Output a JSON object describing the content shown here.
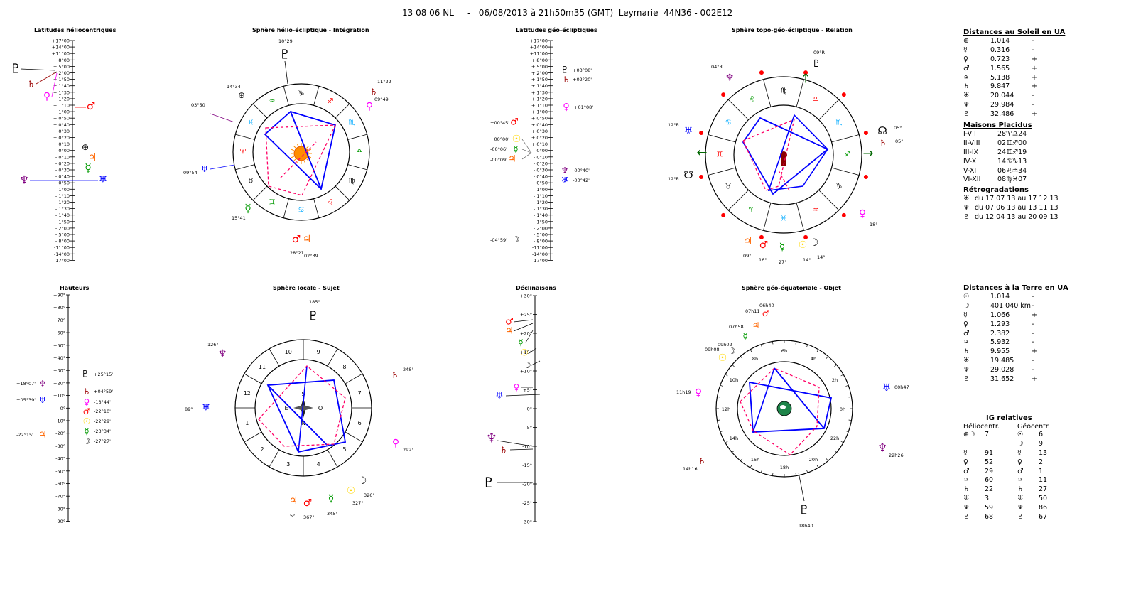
{
  "header": "13 08 06 NL     -   06/08/2013 à 21h50m35 (GMT)  Leymarie  44N36 - 002E12",
  "colors": {
    "sun": "#ffd700",
    "moon": "#000000",
    "mercury": "#009900",
    "venus": "#ff00ff",
    "mars": "#ff0000",
    "jupiter": "#ff6600",
    "saturn": "#990000",
    "uranus": "#0000ff",
    "neptune": "#800080",
    "pluto": "#000000",
    "aspect_blue": "#0000ff",
    "aspect_red": "#ff0066"
  },
  "panels": {
    "helio_lat": {
      "title": "Latitudes héliocentriques",
      "ticks": [
        "+17°00",
        "+14°00",
        "+11°00",
        "+ 8°00",
        "+ 5°00",
        "+ 2°00",
        "+ 1°50",
        "+ 1°40",
        "+ 1°30",
        "+ 1°20",
        "+ 1°10",
        "+ 1°00",
        "+ 0°50",
        "+ 0°40",
        "+ 0°30",
        "+ 0°20",
        "+ 0°10",
        "0°00",
        "- 0°10",
        "- 0°20",
        "- 0°30",
        "- 0°40",
        "- 0°50",
        "- 1°00",
        "- 1°10",
        "- 1°20",
        "- 1°30",
        "- 1°40",
        "- 1°50",
        "- 2°00",
        "- 5°00",
        "- 8°00",
        "-11°00",
        "-14°00",
        "-17°00"
      ]
    },
    "helio_sphere": {
      "title": "Sphère hélio-écliptique - Intégration",
      "labels": [
        "10°29",
        "11°22",
        "14°34",
        "09°49",
        "03°50",
        "09°54",
        "15°41",
        "28°21",
        "02°39"
      ]
    },
    "geo_lat": {
      "title": "Latitudes géo-écliptiques",
      "ticks": [
        "+17°00",
        "+14°00",
        "+11°00",
        "+ 8°00",
        "+ 5°00",
        "+ 2°00",
        "+ 1°50",
        "+ 1°40",
        "+ 1°30",
        "+ 1°20",
        "+ 1°10",
        "+ 1°00",
        "+ 0°50",
        "+ 0°40",
        "+ 0°30",
        "+ 0°20",
        "+ 0°10",
        "0°00",
        "- 0°10",
        "- 0°20",
        "- 0°30",
        "- 0°40",
        "- 0°50",
        "- 1°00",
        "- 1°10",
        "- 1°20",
        "- 1°30",
        "- 1°40",
        "- 1°50",
        "- 2°00",
        "- 5°00",
        "- 8°00",
        "-11°00",
        "-14°00",
        "-17°00"
      ],
      "labels": [
        "+03°08'",
        "+02°20'",
        "+01°08'",
        "+00°45'",
        "+00°00'",
        "-00°06'",
        "-00°09'",
        "-00°40'",
        "-00°42'",
        "-04°59'"
      ]
    },
    "topo_sphere": {
      "title": "Sphère topo-géo-écliptique - Relation",
      "labels": [
        "09°R",
        "04°R",
        "12°R",
        "05°",
        "12°R",
        "18°",
        "09°",
        "16°",
        "27°",
        "14°",
        "14°"
      ]
    },
    "heights": {
      "title": "Hauteurs",
      "ticks": [
        "+90°",
        "+80°",
        "+70°",
        "+60°",
        "+50°",
        "+40°",
        "+30°",
        "+20°",
        "+10°",
        "0°",
        "-10°",
        "-20°",
        "-30°",
        "-40°",
        "-50°",
        "-60°",
        "-70°",
        "-80°",
        "-90°"
      ],
      "labels": [
        "+25°15'",
        "+18°07'",
        "+04°59'",
        "+05°39'",
        "-13°44'",
        "-22°10'",
        "-22°29'",
        "-22°15'",
        "-23°34'",
        "-27°27'"
      ]
    },
    "local_sphere": {
      "title": "Sphère locale - Sujet",
      "houses": [
        "9",
        "8",
        "7",
        "6",
        "5",
        "4",
        "3",
        "2",
        "1",
        "12",
        "11",
        "10"
      ],
      "compass": [
        "S",
        "N",
        "E",
        "O"
      ],
      "labels": [
        "185°",
        "126°",
        "248°",
        "89°",
        "292°",
        "326°",
        "327°",
        "5°",
        "367°",
        "345°"
      ]
    },
    "declinations": {
      "title": "Déclinaisons",
      "ticks": [
        "+30°",
        "+25°",
        "+20°",
        "+15°",
        "+10°",
        "+5°",
        "0°",
        "-5°",
        "-10°",
        "-15°",
        "-20°",
        "-25°",
        "-30°"
      ]
    },
    "geo_eq": {
      "title": "Sphère géo-équatoriale - Objet",
      "hours": [
        "6h",
        "4h",
        "2h",
        "0h",
        "22h",
        "20h",
        "18h",
        "16h",
        "14h",
        "12h",
        "10h",
        "8h"
      ],
      "labels": [
        "06h40",
        "07h11",
        "07h58",
        "09h02",
        "09h08",
        "11h19",
        "00h47",
        "14h16",
        "22h26",
        "18h40"
      ]
    }
  },
  "sun_distances": {
    "title": "Distances au Soleil en UA",
    "rows": [
      {
        "sym": "⊕",
        "val": "1.014",
        "sign": "-"
      },
      {
        "sym": "☿",
        "val": "0.316",
        "sign": "-"
      },
      {
        "sym": "♀",
        "val": "0.723",
        "sign": "+"
      },
      {
        "sym": "♂",
        "val": "1.565",
        "sign": "+"
      },
      {
        "sym": "♃",
        "val": "5.138",
        "sign": "+"
      },
      {
        "sym": "♄",
        "val": "9.847",
        "sign": "+"
      },
      {
        "sym": "♅",
        "val": "20.044",
        "sign": "-"
      },
      {
        "sym": "♆",
        "val": "29.984",
        "sign": "-"
      },
      {
        "sym": "♇",
        "val": "32.486",
        "sign": "+"
      }
    ]
  },
  "houses_placidus": {
    "title": "Maisons Placidus",
    "rows": [
      {
        "k": "I-VII",
        "v": "28♈♎24"
      },
      {
        "k": "II-VIII",
        "v": "02♊♐00"
      },
      {
        "k": "III-IX",
        "v": "24♊♐19"
      },
      {
        "k": "IV-X",
        "v": "14♋♑13"
      },
      {
        "k": "V-XI",
        "v": "06♌♒34"
      },
      {
        "k": "VI-XII",
        "v": "08♍♓07"
      }
    ]
  },
  "retrogradations": {
    "title": "Rétrogradations",
    "rows": [
      {
        "sym": "♅",
        "text": "du 17 07 13 au 17 12 13"
      },
      {
        "sym": "♆",
        "text": "du 07 06 13 au 13 11 13"
      },
      {
        "sym": "♇",
        "text": "du 12 04 13 au 20 09 13"
      }
    ]
  },
  "earth_distances": {
    "title": "Distances à la Terre en UA",
    "rows": [
      {
        "sym": "☉",
        "val": "1.014",
        "sign": "-"
      },
      {
        "sym": "☽",
        "val": "401 040 km",
        "sign": "-"
      },
      {
        "sym": "☿",
        "val": "1.066",
        "sign": "+"
      },
      {
        "sym": "♀",
        "val": "1.293",
        "sign": "-"
      },
      {
        "sym": "♂",
        "val": "2.382",
        "sign": "-"
      },
      {
        "sym": "♃",
        "val": "5.932",
        "sign": "-"
      },
      {
        "sym": "♄",
        "val": "9.955",
        "sign": "+"
      },
      {
        "sym": "♅",
        "val": "19.485",
        "sign": "-"
      },
      {
        "sym": "♆",
        "val": "29.028",
        "sign": "-"
      },
      {
        "sym": "♇",
        "val": "31.652",
        "sign": "+"
      }
    ]
  },
  "ig_relatives": {
    "title": "IG relatives",
    "col1": "Héliocentr.",
    "col2": "Géocentr.",
    "rows": [
      {
        "h": "⊕☽",
        "hv": "7",
        "g": "☉",
        "gv": "6"
      },
      {
        "h": "",
        "hv": "",
        "g": "☽",
        "gv": "9"
      },
      {
        "h": "☿",
        "hv": "91",
        "g": "☿",
        "gv": "13"
      },
      {
        "h": "♀",
        "hv": "52",
        "g": "♀",
        "gv": "2"
      },
      {
        "h": "♂",
        "hv": "29",
        "g": "♂",
        "gv": "1"
      },
      {
        "h": "♃",
        "hv": "60",
        "g": "♃",
        "gv": "11"
      },
      {
        "h": "♄",
        "hv": "22",
        "g": "♄",
        "gv": "27"
      },
      {
        "h": "♅",
        "hv": "3",
        "g": "♅",
        "gv": "50"
      },
      {
        "h": "♆",
        "hv": "59",
        "g": "♆",
        "gv": "86"
      },
      {
        "h": "♇",
        "hv": "68",
        "g": "♇",
        "gv": "67"
      }
    ]
  }
}
